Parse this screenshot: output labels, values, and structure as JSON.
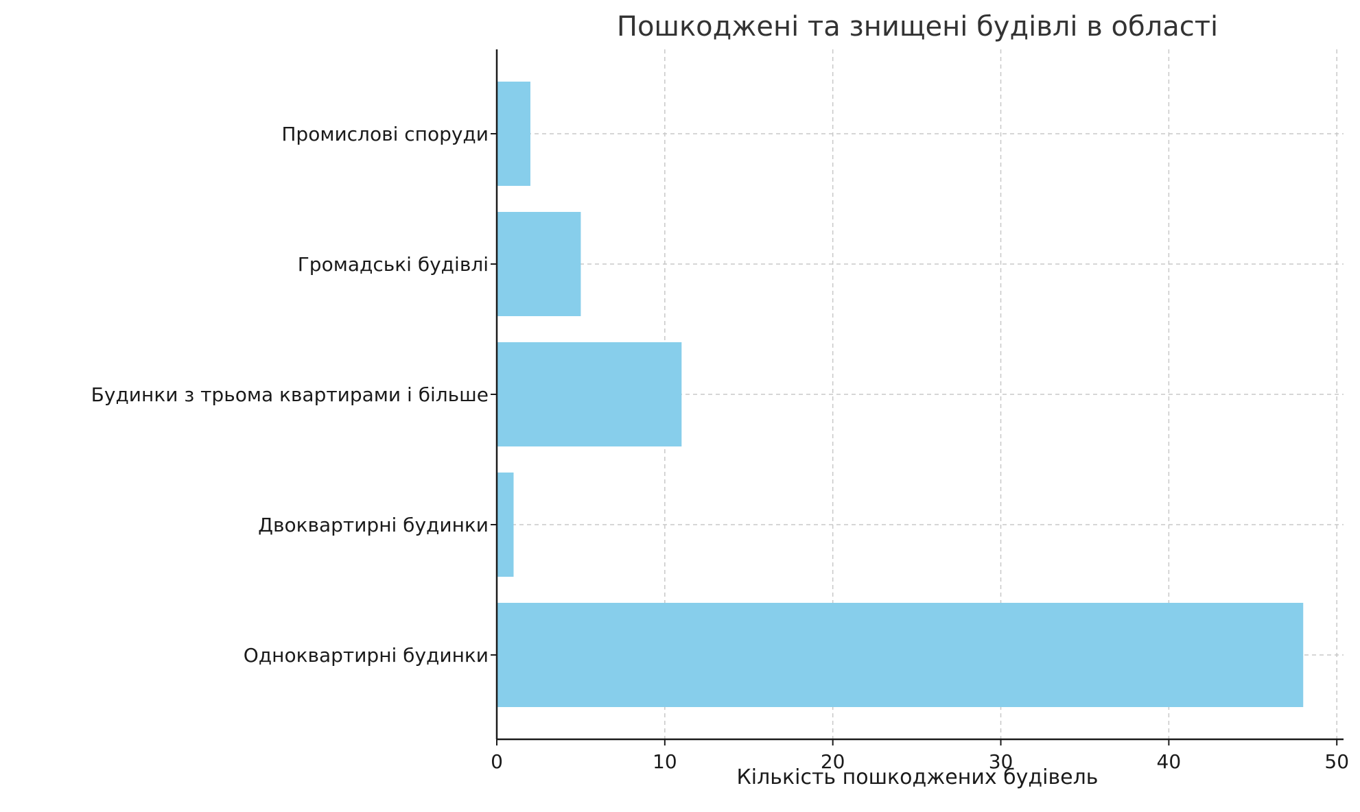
{
  "chart_data": {
    "type": "bar",
    "orientation": "horizontal",
    "title": "Пошкоджені та знищені будівлі в області",
    "xlabel": "Кількість пошкоджених будівель",
    "ylabel": "",
    "categories": [
      "Одноквартирні будинки",
      "Двоквартирні будинки",
      "Будинки з трьома квартирами і більше",
      "Громадські будівлі",
      "Промислові споруди"
    ],
    "values": [
      48,
      1,
      11,
      5,
      2
    ],
    "xlim": [
      0,
      50.4
    ],
    "xticks": [
      0,
      10,
      20,
      30,
      40,
      50
    ],
    "grid": true,
    "bar_color": "#87ceeb"
  }
}
